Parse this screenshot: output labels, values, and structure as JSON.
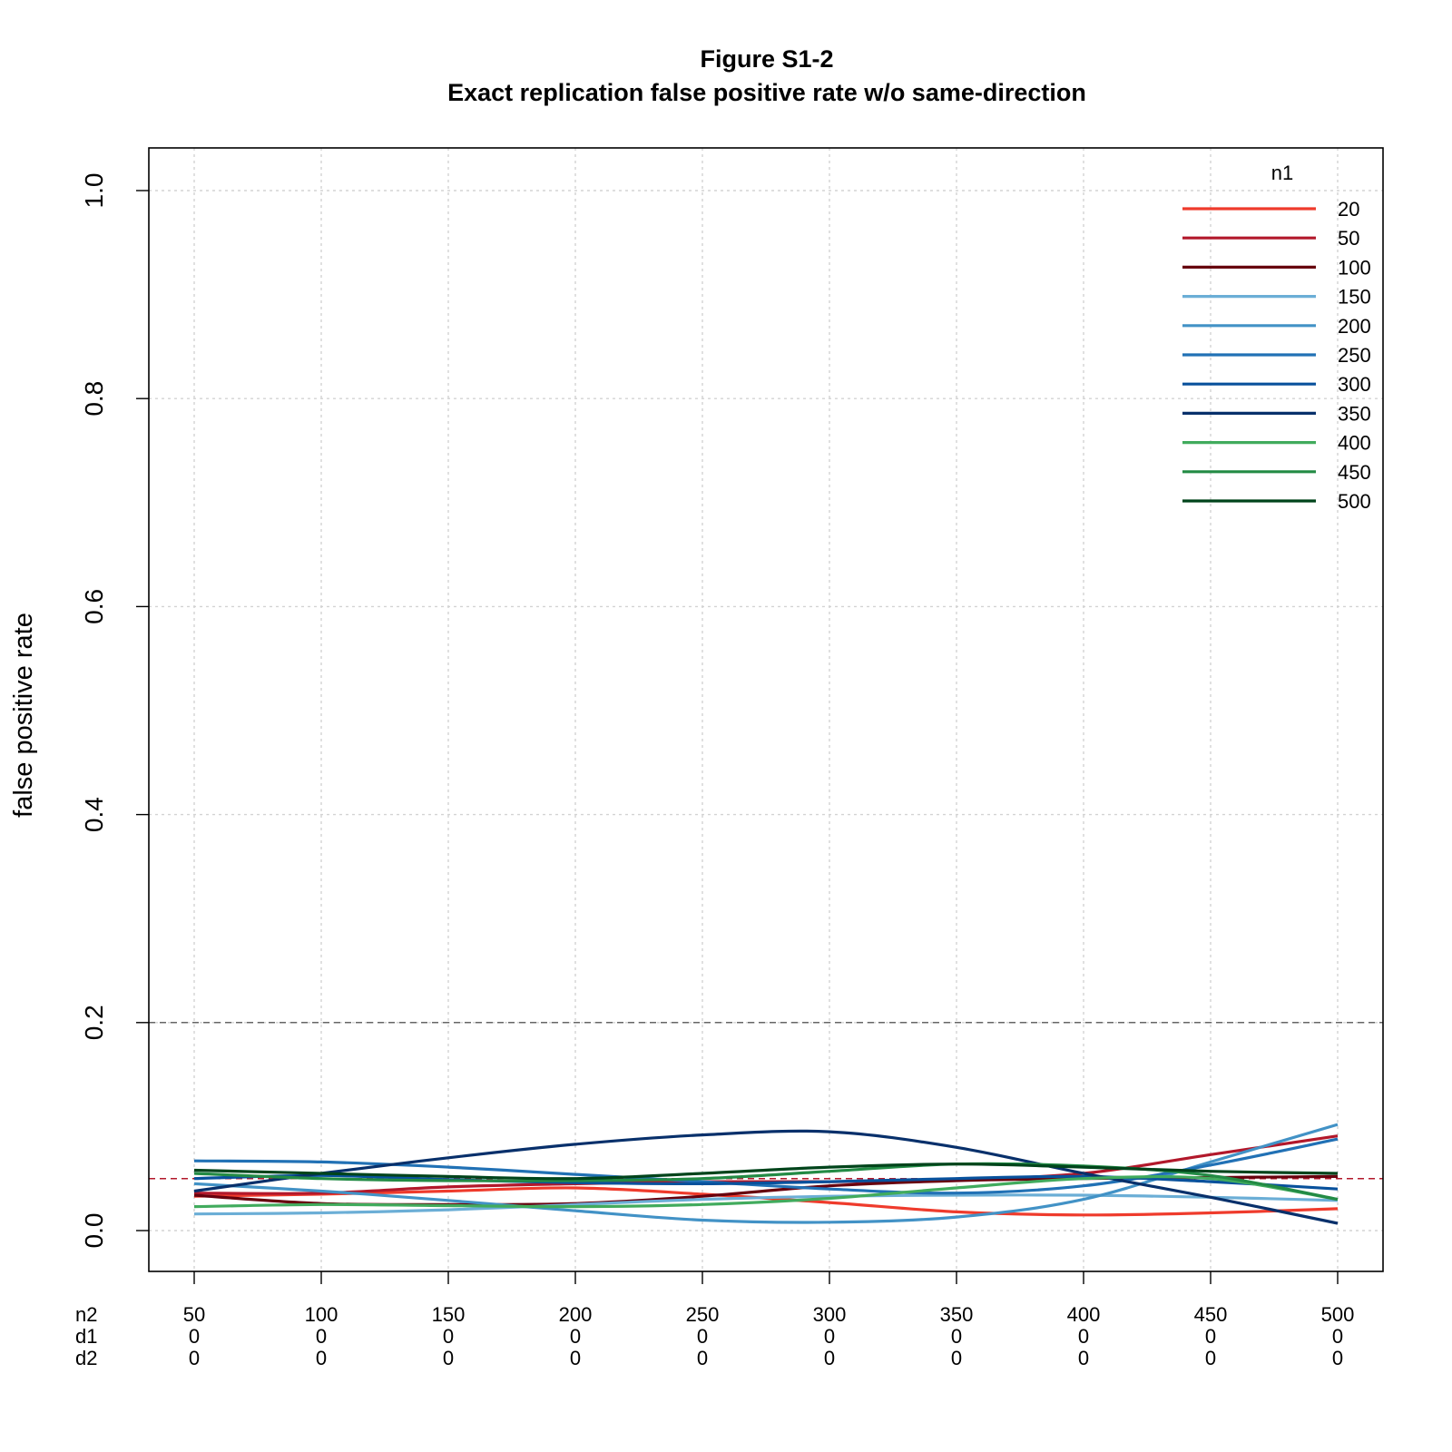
{
  "chart_data": {
    "type": "line",
    "title": "Figure S1-2",
    "subtitle": "Exact replication false positive rate w/o same-direction",
    "ylabel": "false positive rate",
    "xlabel": "",
    "ylim": [
      0,
      1
    ],
    "yticks": [
      0.0,
      0.2,
      0.4,
      0.6,
      0.8,
      1.0
    ],
    "ytick_labels": [
      "0.0",
      "0.2",
      "0.4",
      "0.6",
      "0.8",
      "1.0"
    ],
    "grid": true,
    "x": [
      50,
      100,
      150,
      200,
      250,
      300,
      350,
      400,
      450,
      500
    ],
    "xrows": [
      {
        "label": "n2",
        "values": [
          "50",
          "100",
          "150",
          "200",
          "250",
          "300",
          "350",
          "400",
          "450",
          "500"
        ]
      },
      {
        "label": "d1",
        "values": [
          "0",
          "0",
          "0",
          "0",
          "0",
          "0",
          "0",
          "0",
          "0",
          "0"
        ]
      },
      {
        "label": "d2",
        "values": [
          "0",
          "0",
          "0",
          "0",
          "0",
          "0",
          "0",
          "0",
          "0",
          "0"
        ]
      }
    ],
    "reference_lines": [
      {
        "y": 0.2,
        "color": "#666666",
        "style": "dashed"
      },
      {
        "y": 0.05,
        "color": "#b2182b",
        "style": "dashed"
      }
    ],
    "legend_title": "n1",
    "legend_position": "top-right",
    "series": [
      {
        "name": "20",
        "color": "#ef3b2c",
        "values": [
          0.033,
          0.035,
          0.038,
          0.041,
          0.035,
          0.027,
          0.018,
          0.015,
          0.017,
          0.021
        ]
      },
      {
        "name": "50",
        "color": "#b2182b",
        "values": [
          0.036,
          0.036,
          0.042,
          0.045,
          0.047,
          0.047,
          0.049,
          0.055,
          0.073,
          0.091
        ]
      },
      {
        "name": "100",
        "color": "#67000d",
        "values": [
          0.034,
          0.026,
          0.025,
          0.026,
          0.033,
          0.043,
          0.048,
          0.05,
          0.051,
          0.052
        ]
      },
      {
        "name": "150",
        "color": "#6baed6",
        "values": [
          0.016,
          0.017,
          0.02,
          0.025,
          0.03,
          0.033,
          0.034,
          0.034,
          0.032,
          0.029
        ]
      },
      {
        "name": "200",
        "color": "#4292c6",
        "values": [
          0.045,
          0.038,
          0.029,
          0.019,
          0.01,
          0.008,
          0.013,
          0.03,
          0.066,
          0.102
        ]
      },
      {
        "name": "250",
        "color": "#2171b5",
        "values": [
          0.067,
          0.066,
          0.061,
          0.054,
          0.047,
          0.04,
          0.036,
          0.043,
          0.063,
          0.088
        ]
      },
      {
        "name": "300",
        "color": "#08519c",
        "values": [
          0.05,
          0.053,
          0.049,
          0.046,
          0.045,
          0.047,
          0.05,
          0.052,
          0.047,
          0.04
        ]
      },
      {
        "name": "350",
        "color": "#08306b",
        "values": [
          0.038,
          0.055,
          0.07,
          0.083,
          0.092,
          0.095,
          0.08,
          0.055,
          0.032,
          0.007
        ]
      },
      {
        "name": "400",
        "color": "#41ab5d",
        "values": [
          0.023,
          0.025,
          0.024,
          0.023,
          0.025,
          0.031,
          0.041,
          0.05,
          0.05,
          0.03
        ]
      },
      {
        "name": "450",
        "color": "#238b45",
        "values": [
          0.055,
          0.05,
          0.048,
          0.048,
          0.05,
          0.057,
          0.064,
          0.062,
          0.053,
          0.03
        ]
      },
      {
        "name": "500",
        "color": "#00441b",
        "values": [
          0.058,
          0.055,
          0.052,
          0.05,
          0.055,
          0.061,
          0.064,
          0.061,
          0.057,
          0.055
        ]
      }
    ]
  }
}
